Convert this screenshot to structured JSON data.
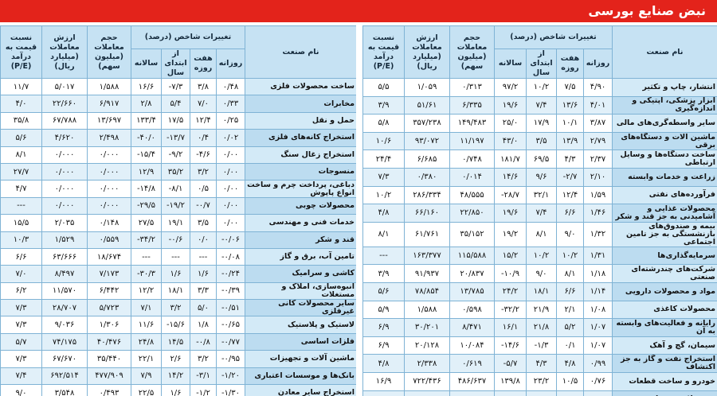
{
  "title": "نبض صنایع بورسی",
  "columns": {
    "name": "نام صنعت",
    "change_group": "تغییرات شاخص (درصد)",
    "daily": "روزانه",
    "weekly": "هفت روزه",
    "ytd": "از ابتدای سال",
    "annual": "سالانه",
    "volume": "حجم معاملات (میلیون سهم)",
    "value": "ارزش معاملات (میلیارد ریال)",
    "pe": "نسبت قیمت به درآمد (P/E)"
  },
  "tables": [
    {
      "rows": [
        [
          "انتشار، چاپ و تکثیر",
          "۴/۹۰",
          "۷/۵",
          "۱۰/۲",
          "۹۷/۲",
          "۰/۳۱۳",
          "۱/۰۵۹",
          "۵/۵"
        ],
        [
          "ابزار پزشکی، اپتیکی و اندازه‌گیری",
          "۴/۰۱",
          "۱۳/۶",
          "۷/۴",
          "۱۹/۶",
          "۶/۳۳۵",
          "۵۱/۶۱",
          "۳/۹"
        ],
        [
          "سایر واسطه‌گری‌های مالی",
          "۳/۸۷",
          "۱۰/۱",
          "۱۷/۹",
          "۲۵/۰",
          "۱۴۹/۴۸۳",
          "۳۵۷/۲۳۸",
          "۵/۸"
        ],
        [
          "ماشین آلات و دستگاه‌های برقی",
          "۲/۷۹",
          "۱۳/۹",
          "۳/۵",
          "۴۳/۰",
          "۱۱/۱۹۷",
          "۹۳/۰۷۲",
          "۱۰/۶"
        ],
        [
          "ساخت دستگاه‌ها و وسایل ارتباطی",
          "۲/۳۷",
          "۴/۳",
          "۶۹/۵",
          "۱۸۱/۷",
          "۰/۷۴۸",
          "۶/۶۸۵",
          "۲۴/۴"
        ],
        [
          "زراعت و خدمات وابسته",
          "۲/۱۰",
          "-۲/۷",
          "۹/۶",
          "۱۴/۶",
          "۰/۰۱۴",
          "۰/۳۸۰",
          "۷/۳"
        ],
        [
          "فرآورده‌های نفتی",
          "۱/۵۹",
          "۱۲/۴",
          "۳۲/۱",
          "-۲۸/۷",
          "۴۸/۵۵۵",
          "۲۸۶/۳۳۴",
          "۱۰/۲"
        ],
        [
          "محصولات غذایی و آشامیدنی به جز قند و شکر",
          "۱/۴۶",
          "۶/۶",
          "۷/۴",
          "۱۹/۶",
          "۲۲/۸۵۰",
          "۶۶/۱۶۰",
          "۴/۸"
        ],
        [
          "بیمه و صندوق‌های بازنشستگی به جز تامین اجتماعی",
          "۱/۳۲",
          "۹/۰",
          "۸/۱",
          "۱۹/۲",
          "۳۵/۱۵۲",
          "۶۱/۷۶۱",
          "۸/۱"
        ],
        [
          "سرمایه‌گذاری‌ها",
          "۱/۳۱",
          "۱۰/۲",
          "۱۰/۲",
          "۱۵/۲",
          "۱۱۵/۵۸۸",
          "۱۶۳/۳۷۷",
          "---"
        ],
        [
          "شرکت‌های چندرشته‌ای صنعتی",
          "۱/۱۸",
          "۸/۱",
          "۹/۰",
          "-۱۰/۹",
          "۲۰/۸۳۷",
          "۹۱/۹۳۷",
          "۳/۹"
        ],
        [
          "مواد و محصولات دارویی",
          "۱/۱۴",
          "۶/۶",
          "۱۸/۱",
          "۲۴/۲",
          "۱۳/۷۸۵",
          "۷۸/۸۵۴",
          "۵/۶"
        ],
        [
          "محصولات کاغذی",
          "۱/۰۸",
          "۲/۱",
          "۲۱/۹",
          "-۳۲/۲",
          "۰/۵۹۸",
          "۱/۵۸۸",
          "۵/۹"
        ],
        [
          "رایانه و فعالیت‌های وابسته به آن",
          "۱/۰۷",
          "۵/۲",
          "۲۱/۸",
          "۱۶/۱",
          "۸/۴۷۱",
          "۳۰/۲۰۱",
          "۶/۹"
        ],
        [
          "سیمان، گچ و آهک",
          "۱/۰۷",
          "۰/۱",
          "-۱/۳",
          "-۱۴/۶",
          "۱۰/۰۸۴",
          "۲۰/۱۲۸",
          "۶/۹"
        ],
        [
          "استخراج نفت و گاز به جز اکتشاف",
          "۰/۹۹",
          "۴/۸",
          "۴/۳",
          "-۵/۷",
          "۰/۶۱۹",
          "۲/۳۳۸",
          "۴/۸"
        ],
        [
          "خودرو و ساخت قطعات",
          "۰/۷۶",
          "۱۰/۵",
          "۲۳/۲",
          "۱۳۹/۸",
          "۴۸۶/۶۳۷",
          "۷۲۲/۴۳۶",
          "۱۶/۹"
        ],
        [
          "محصولات شیمیایی",
          "۰/۶۹",
          "۴/۹",
          "۱۳/۶",
          "۶/۶",
          "۶۷/۵۹۵",
          "۲۰۳/۹۲۰",
          "۵/۱"
        ]
      ]
    },
    {
      "rows": [
        [
          "ساخت محصولات فلزی",
          "۰/۴۸",
          "۳/۸",
          "-۷/۳",
          "۱۶/۶",
          "۱/۵۸۸",
          "۵/۰۱۷",
          "۱۱/۷"
        ],
        [
          "مخابرات",
          "۰/۳۳",
          "۷/۰",
          "۵/۴",
          "۲/۸",
          "۶/۹۱۷",
          "۲۲/۶۶۰",
          "۴/۰"
        ],
        [
          "حمل و نقل",
          "۰/۲۵",
          "۱۲/۴",
          "۱۷/۵",
          "۱۳۳/۴",
          "۱۳/۶۹۷",
          "۶۷/۷۸۸",
          "۳۵/۸"
        ],
        [
          "استخراج کانه‌های فلزی",
          "۰/۰۲",
          "۰/۴",
          "-۱۳/۷",
          "-۴۰/۰",
          "۲/۴۹۸",
          "۴/۶۲۰",
          "۵/۶"
        ],
        [
          "استخراج زغال سنگ",
          "۰/۰۰",
          "-۴/۶",
          "-۹/۲",
          "-۱۵/۴",
          "۰/۰۰۰",
          "۰/۰۰۰",
          "۸/۱"
        ],
        [
          "منسوجات",
          "۰/۰۰",
          "۳/۲",
          "۳۵/۲",
          "۱۲/۹",
          "۰/۰۰۰",
          "۰/۰۰۰",
          "۲۷/۷"
        ],
        [
          "دباغی، پرداخت چرم و ساخت انواع پاپوش",
          "۰/۰۰",
          "۰/۵",
          "-۸/۱",
          "-۱۴/۸",
          "۰/۰۰۰",
          "۰/۰۰۰",
          "۴/۷"
        ],
        [
          "محصولات چوبی",
          "۰/۰۰",
          "-۰/۷",
          "-۱۹/۲",
          "-۲۹/۵",
          "۰/۰۰۰",
          "۰/۰۰۰",
          "---"
        ],
        [
          "خدمات فنی و مهندسی",
          "۰/۰۰",
          "۳/۵",
          "۱۹/۱",
          "۲۷/۵",
          "۰/۱۴۸",
          "۲/۰۳۵",
          "۱۵/۵"
        ],
        [
          "قند و شکر",
          "-۰/۰۶",
          "۰/۰",
          "-۰/۶",
          "-۳۴/۲",
          "۰/۵۵۹",
          "۱/۵۲۹",
          "۱۰/۳"
        ],
        [
          "تامین آب، برق و گاز",
          "-۰/۰۸",
          "---",
          "---",
          "---",
          "۱۸/۶۷۴",
          "۶۳/۶۶۶",
          "۶/۶"
        ],
        [
          "کاشی و سرامیک",
          "-۰/۲۴",
          "۱/۶",
          "۱/۶",
          "-۳۰/۳",
          "۷/۱۷۳",
          "۸/۴۹۷",
          "۷/۰"
        ],
        [
          "انبوه‌سازی، املاک و مستغلات",
          "-۰/۳۹",
          "۳/۳",
          "۱۸/۱",
          "۱۲/۲",
          "۶/۴۴۲",
          "۱۱/۵۷۰",
          "۶/۲"
        ],
        [
          "سایر محصولات کانی غیرفلزی",
          "-۰/۵۱",
          "۵/۰",
          "۳/۲",
          "۷/۱",
          "۵/۷۲۳",
          "۲۸/۷۰۷",
          "۷/۳"
        ],
        [
          "لاستیک و پلاستیک",
          "-۰/۶۵",
          "۱/۸",
          "-۱۵/۶",
          "۱۱/۶",
          "۱/۳۰۶",
          "۹/۰۳۶",
          "۷/۳"
        ],
        [
          "فلزات اساسی",
          "-۰/۷۷",
          "-۰/۸",
          "۱۴/۵",
          "۲۴/۸",
          "۴۰/۴۷۶",
          "۷۴/۱۷۵",
          "۵/۷"
        ],
        [
          "ماشین آلات و تجهیزات",
          "-۰/۹۵",
          "۳/۲",
          "۲/۶",
          "۲۲/۱",
          "۳۵/۴۴۰",
          "۶۷/۶۷۰",
          "۷/۳"
        ],
        [
          "بانک‌ها و موسسات اعتباری",
          "-۱/۲۰",
          "-۳/۱",
          "۱۴/۲",
          "۷/۹",
          "۴۷۷/۹۰۹",
          "۶۹۲/۵۱۴",
          "۷/۴"
        ],
        [
          "استخراج سایر معادن",
          "-۱/۳۰",
          "-۱/۲",
          "۱/۶",
          "۲۲/۵",
          "۰/۴۹۳",
          "۳/۵۴۸",
          "۹/۰"
        ]
      ]
    }
  ]
}
